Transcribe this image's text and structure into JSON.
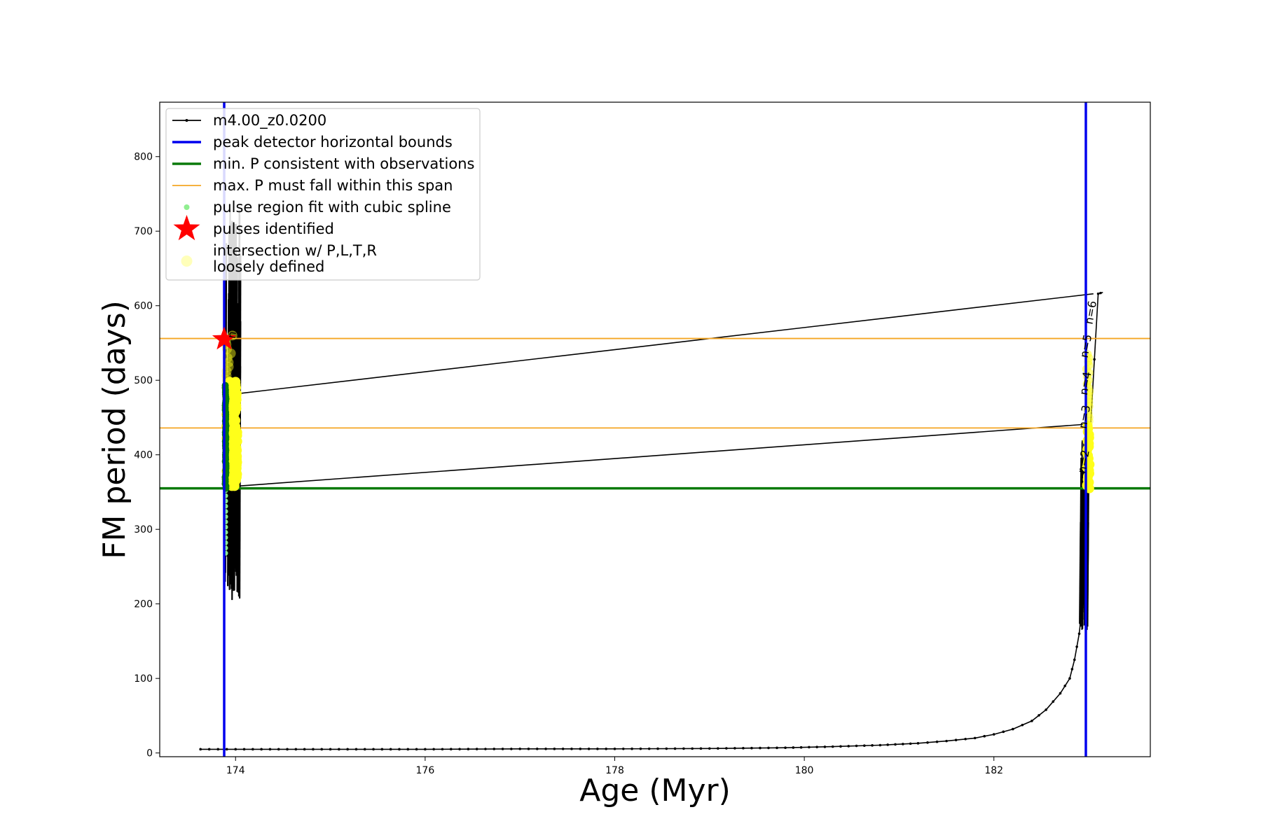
{
  "chart_data": {
    "type": "line",
    "title": "",
    "xlabel": "Age (Myr)",
    "ylabel": "FM period (days)",
    "xlim": [
      173.2,
      183.65
    ],
    "ylim": [
      -5,
      873
    ],
    "x_ticks": [
      174,
      176,
      178,
      180,
      182
    ],
    "y_ticks": [
      0,
      100,
      200,
      300,
      400,
      500,
      600,
      700,
      800
    ],
    "grid": false,
    "legend_position": "top-left",
    "colors": {
      "track": "#000000",
      "bounds": "#0000ee",
      "min_p": "#0a7a0a",
      "max_p_span": "#f5a623",
      "spline": "#90ee90",
      "pulse": "#ff0000",
      "intersection": "#ffff1a"
    },
    "legend": [
      {
        "key": "track",
        "label": "m4.00_z0.0200"
      },
      {
        "key": "bounds",
        "label": "peak detector horizontal bounds"
      },
      {
        "key": "min_p",
        "label": "min. P consistent with observations"
      },
      {
        "key": "max_p_span",
        "label": "max. P must fall within this span"
      },
      {
        "key": "spline",
        "label": "pulse region fit with cubic spline"
      },
      {
        "key": "pulse",
        "label": "pulses identified"
      },
      {
        "key": "intersection",
        "label": "intersection w/ P,L,T,R",
        "label2": "loosely defined"
      }
    ],
    "horizontal_bounds_x": [
      173.88,
      182.97
    ],
    "min_p_y": 355,
    "max_p_span_y": [
      436,
      556
    ],
    "series": [
      {
        "name": "m4.00_z0.0200",
        "points": [
          [
            173.63,
            5
          ],
          [
            174.0,
            5
          ],
          [
            175.0,
            5
          ],
          [
            176.0,
            5
          ],
          [
            177.0,
            5.5
          ],
          [
            178.0,
            5.5
          ],
          [
            179.0,
            6
          ],
          [
            179.8,
            7
          ],
          [
            180.3,
            8.5
          ],
          [
            180.8,
            10.5
          ],
          [
            181.2,
            13
          ],
          [
            181.5,
            16
          ],
          [
            181.8,
            20
          ],
          [
            182.0,
            25
          ],
          [
            182.2,
            32
          ],
          [
            182.4,
            43
          ],
          [
            182.55,
            58
          ],
          [
            182.7,
            80
          ],
          [
            182.8,
            100
          ],
          [
            182.85,
            125
          ],
          [
            182.9,
            160
          ],
          [
            182.93,
            195
          ],
          [
            182.95,
            235
          ],
          [
            182.97,
            285
          ],
          [
            182.99,
            335
          ],
          [
            183.0,
            380
          ],
          [
            183.02,
            440
          ],
          [
            183.1,
            616
          ],
          [
            183.15,
            618
          ]
        ]
      },
      {
        "name": "connector-upper",
        "points": [
          [
            174.02,
            482
          ],
          [
            183.05,
            616
          ]
        ]
      },
      {
        "name": "connector-lower",
        "points": [
          [
            174.02,
            358
          ],
          [
            182.98,
            441
          ]
        ]
      }
    ],
    "pulse_identified": [
      {
        "x": 173.88,
        "y": 555
      }
    ],
    "annotations": [
      "n=2",
      "n=3",
      "n=4",
      "n=5",
      "n=6",
      "n"
    ]
  }
}
